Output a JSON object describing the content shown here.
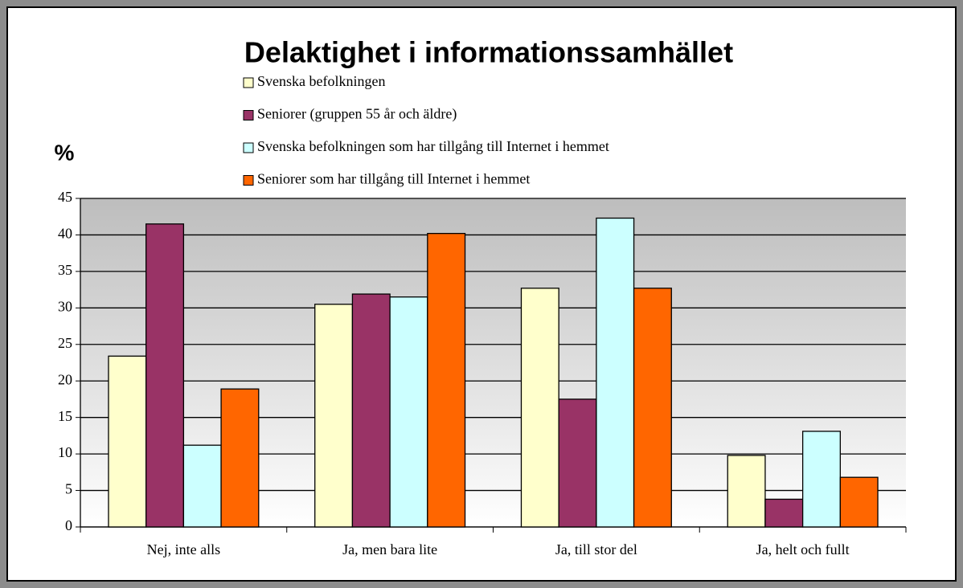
{
  "chart_data": {
    "type": "bar",
    "title": "Delaktighet i informationssamhället",
    "ylabel": "%",
    "categories": [
      "Nej, inte alls",
      "Ja, men bara lite",
      "Ja, till stor del",
      "Ja, helt och fullt"
    ],
    "series": [
      {
        "name": "Svenska befolkningen",
        "color": "#ffffcc",
        "values": [
          23.4,
          30.5,
          32.7,
          9.8
        ]
      },
      {
        "name": "Seniorer (gruppen 55 år och äldre)",
        "color": "#993366",
        "values": [
          41.5,
          31.9,
          17.5,
          3.8
        ]
      },
      {
        "name": "Svenska befolkningen som har tillgång till Internet i hemmet",
        "color": "#ccffff",
        "values": [
          11.2,
          31.5,
          42.3,
          13.1
        ]
      },
      {
        "name": "Seniorer som har tillgång till Internet i hemmet",
        "color": "#ff6600",
        "values": [
          18.9,
          40.2,
          32.7,
          6.8
        ]
      }
    ],
    "ylim": [
      0,
      45
    ],
    "yticks": [
      0,
      5,
      10,
      15,
      20,
      25,
      30,
      35,
      40,
      45
    ],
    "grid": true,
    "legend": "top"
  }
}
